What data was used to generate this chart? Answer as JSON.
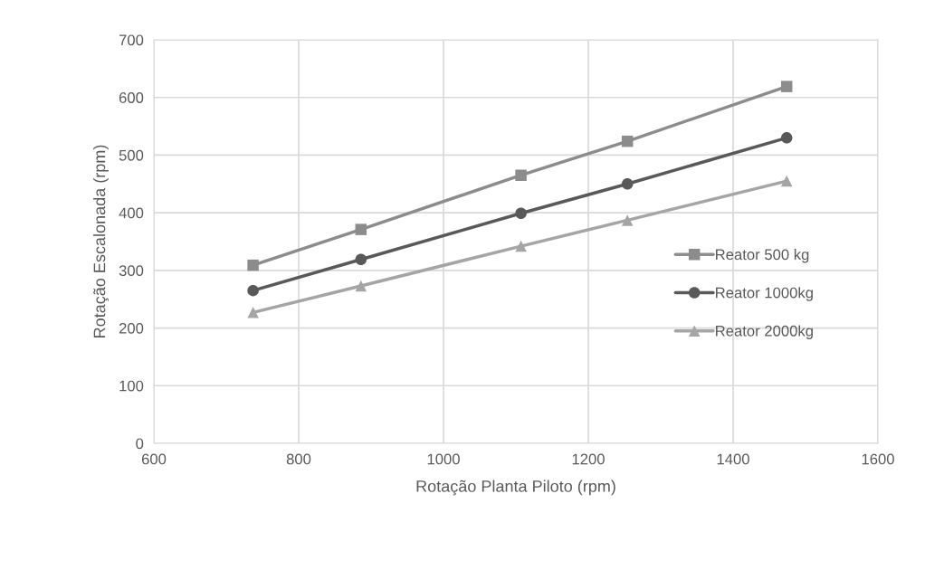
{
  "chart_data": {
    "type": "line",
    "xlabel": "Rotação Planta Piloto (rpm)",
    "ylabel": "Rotação Escalonada (rpm)",
    "x": [
      737,
      886,
      1107,
      1254,
      1474
    ],
    "series": [
      {
        "name": "Reator 500 kg",
        "color": "#8c8c8c",
        "marker": "square",
        "values": [
          309,
          371,
          465,
          524,
          619
        ]
      },
      {
        "name": "Reator 1000kg",
        "color": "#595959",
        "marker": "circle",
        "values": [
          265,
          319,
          399,
          450,
          530
        ]
      },
      {
        "name": "Reator 2000kg",
        "color": "#a5a5a5",
        "marker": "triangle",
        "values": [
          227,
          273,
          342,
          387,
          455
        ]
      }
    ],
    "xlim": [
      600,
      1600
    ],
    "xticks": [
      600,
      800,
      1000,
      1200,
      1400,
      1600
    ],
    "ylim": [
      0,
      700
    ],
    "yticks": [
      0,
      100,
      200,
      300,
      400,
      500,
      600,
      700
    ],
    "grid": true,
    "legend": "right",
    "line_style": "solid"
  }
}
